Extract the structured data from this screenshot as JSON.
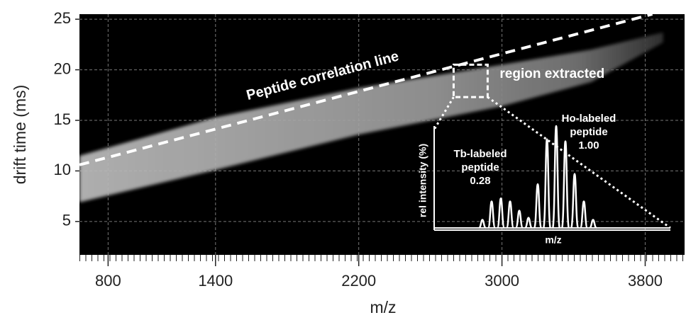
{
  "chart_data": {
    "type": "heatmap",
    "x_label": "m/z",
    "y_label": "drift time (ms)",
    "xlim": [
      640,
      4020
    ],
    "ylim": [
      1.7,
      25.5
    ],
    "xticks": [
      800,
      1400,
      2200,
      3000,
      3800
    ],
    "yticks": [
      5,
      10,
      15,
      20,
      25
    ],
    "grid": true,
    "band": {
      "x": [
        640,
        1400,
        2200,
        3000,
        3500,
        3900
      ],
      "upper": [
        11.5,
        15.3,
        18.2,
        20.5,
        22.0,
        23.7
      ],
      "lower": [
        6.9,
        10.1,
        13.6,
        16.4,
        18.8,
        22.7
      ]
    },
    "correlation_line": {
      "label": "Peptide correlation line",
      "x": [
        640,
        3840
      ],
      "y": [
        10.6,
        25.5
      ]
    },
    "region": {
      "label": "region extracted",
      "xlim": [
        2730,
        2920
      ],
      "ylim": [
        17.3,
        20.5
      ]
    },
    "inset": {
      "x_label": "m/z",
      "y_label": "rel intensity (%)",
      "ylim": [
        0,
        100
      ],
      "peaks": [
        8,
        26,
        29,
        26,
        17,
        10,
        43,
        87,
        100,
        85,
        53,
        26,
        8
      ],
      "annotations": [
        {
          "lines": [
            "Tb-labeled",
            "peptide",
            "0.28"
          ]
        },
        {
          "lines": [
            "Ho-labeled",
            "peptide",
            "1.00"
          ]
        }
      ]
    }
  }
}
